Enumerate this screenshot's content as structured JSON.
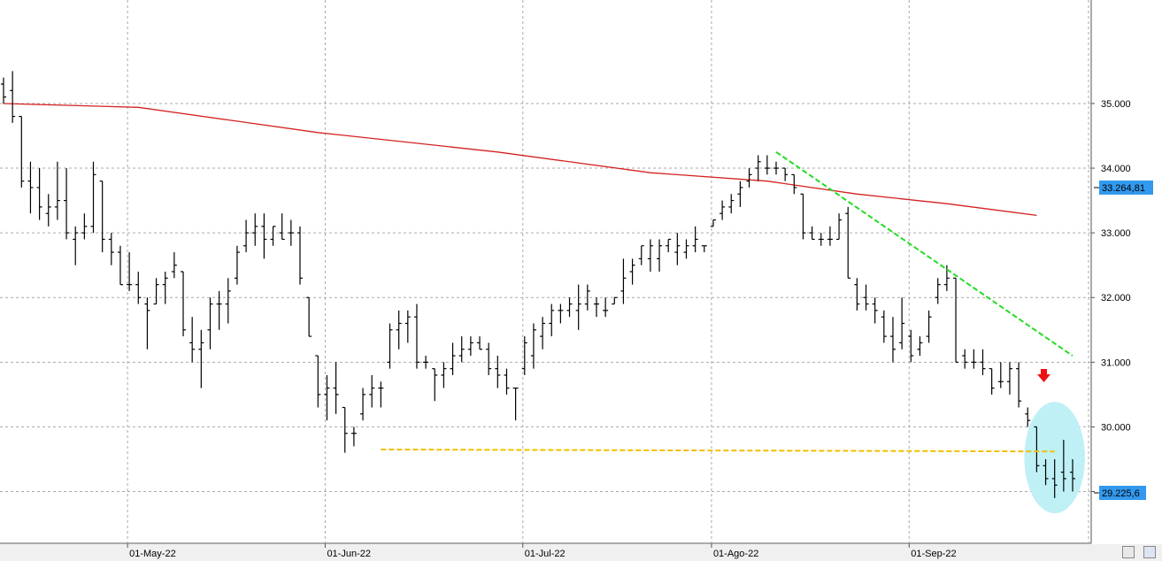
{
  "chart_data": {
    "type": "bar",
    "chart_style": "ohlc",
    "grid": true,
    "ylim": [
      28.2,
      36.6
    ],
    "y_ticks": [
      "29.000",
      "30.000",
      "31.000",
      "32.000",
      "33.000",
      "34.000",
      "35.000"
    ],
    "x_ticks": [
      "01-May-22",
      "01-Jun-22",
      "01-Jul-22",
      "01-Ago-22",
      "01-Sep-22"
    ],
    "last_price_label": "29.225,6",
    "ma_value_label": "33.264,81",
    "colors": {
      "bars": "#000000",
      "moving_average": "#d42020",
      "trendline": "#22dd22",
      "support": "#f0c000",
      "highlight": "#bff0f6",
      "arrow": "#ee1111",
      "tag": "#3399ee",
      "grid": "#aaaaaa"
    },
    "bars": [
      {
        "h": 35.4,
        "l": 35.0,
        "o": 35.3,
        "c": 35.1
      },
      {
        "h": 35.5,
        "l": 34.7,
        "o": 35.2,
        "c": 34.8
      },
      {
        "h": 34.8,
        "l": 33.7,
        "o": 34.8,
        "c": 33.8
      },
      {
        "h": 34.1,
        "l": 33.3,
        "o": 33.8,
        "c": 33.7
      },
      {
        "h": 34.0,
        "l": 33.2,
        "o": 33.7,
        "c": 33.4
      },
      {
        "h": 33.6,
        "l": 33.1,
        "o": 33.3,
        "c": 33.4
      },
      {
        "h": 34.1,
        "l": 33.2,
        "o": 33.4,
        "c": 33.5
      },
      {
        "h": 34.0,
        "l": 32.9,
        "o": 33.5,
        "c": 33.0
      },
      {
        "h": 33.1,
        "l": 32.5,
        "o": 32.9,
        "c": 33.0
      },
      {
        "h": 33.3,
        "l": 32.9,
        "o": 33.0,
        "c": 33.1
      },
      {
        "h": 34.1,
        "l": 33.0,
        "o": 33.1,
        "c": 33.9
      },
      {
        "h": 33.8,
        "l": 32.7,
        "o": 33.8,
        "c": 32.9
      },
      {
        "h": 33.0,
        "l": 32.5,
        "o": 32.9,
        "c": 32.7
      },
      {
        "h": 32.8,
        "l": 32.2,
        "o": 32.7,
        "c": 32.2
      },
      {
        "h": 32.7,
        "l": 32.1,
        "o": 32.2,
        "c": 32.2
      },
      {
        "h": 32.4,
        "l": 31.9,
        "o": 32.2,
        "c": 32.0
      },
      {
        "h": 32.0,
        "l": 31.2,
        "o": 31.9,
        "c": 31.8
      },
      {
        "h": 32.3,
        "l": 31.9,
        "o": 31.9,
        "c": 32.2
      },
      {
        "h": 32.4,
        "l": 31.9,
        "o": 32.2,
        "c": 32.3
      },
      {
        "h": 32.7,
        "l": 32.3,
        "o": 32.4,
        "c": 32.5
      },
      {
        "h": 32.4,
        "l": 31.4,
        "o": 32.4,
        "c": 31.5
      },
      {
        "h": 31.7,
        "l": 31.0,
        "o": 31.3,
        "c": 31.2
      },
      {
        "h": 31.5,
        "l": 30.6,
        "o": 31.2,
        "c": 31.3
      },
      {
        "h": 32.0,
        "l": 31.2,
        "o": 31.5,
        "c": 31.9
      },
      {
        "h": 32.1,
        "l": 31.5,
        "o": 31.9,
        "c": 31.9
      },
      {
        "h": 32.3,
        "l": 31.6,
        "o": 31.9,
        "c": 32.1
      },
      {
        "h": 32.8,
        "l": 32.2,
        "o": 32.3,
        "c": 32.7
      },
      {
        "h": 33.2,
        "l": 32.7,
        "o": 32.8,
        "c": 33.0
      },
      {
        "h": 33.3,
        "l": 32.8,
        "o": 33.0,
        "c": 33.1
      },
      {
        "h": 33.3,
        "l": 32.6,
        "o": 33.1,
        "c": 32.9
      },
      {
        "h": 33.1,
        "l": 32.8,
        "o": 32.9,
        "c": 33.1
      },
      {
        "h": 33.3,
        "l": 32.9,
        "o": 33.0,
        "c": 32.9
      },
      {
        "h": 33.2,
        "l": 32.8,
        "o": 33.0,
        "c": 33.0
      },
      {
        "h": 33.1,
        "l": 32.2,
        "o": 33.0,
        "c": 32.3
      },
      {
        "h": 32.0,
        "l": 31.4,
        "o": 32.0,
        "c": 31.4
      },
      {
        "h": 31.1,
        "l": 30.3,
        "o": 31.1,
        "c": 30.5
      },
      {
        "h": 30.8,
        "l": 30.1,
        "o": 30.5,
        "c": 30.6
      },
      {
        "h": 31.0,
        "l": 30.2,
        "o": 30.6,
        "c": 30.5
      },
      {
        "h": 30.3,
        "l": 29.6,
        "o": 30.3,
        "c": 29.9
      },
      {
        "h": 30.0,
        "l": 29.7,
        "o": 29.9,
        "c": 29.9
      },
      {
        "h": 30.6,
        "l": 30.1,
        "o": 30.2,
        "c": 30.5
      },
      {
        "h": 30.8,
        "l": 30.3,
        "o": 30.5,
        "c": 30.6
      },
      {
        "h": 30.7,
        "l": 30.3,
        "o": 30.6,
        "c": 30.6
      },
      {
        "h": 31.6,
        "l": 30.9,
        "o": 31.0,
        "c": 31.5
      },
      {
        "h": 31.8,
        "l": 31.2,
        "o": 31.5,
        "c": 31.6
      },
      {
        "h": 31.8,
        "l": 31.3,
        "o": 31.6,
        "c": 31.7
      },
      {
        "h": 31.9,
        "l": 30.9,
        "o": 31.7,
        "c": 31.0
      },
      {
        "h": 31.1,
        "l": 30.9,
        "o": 31.0,
        "c": 31.0
      },
      {
        "h": 30.9,
        "l": 30.4,
        "o": 30.9,
        "c": 30.8
      },
      {
        "h": 31.0,
        "l": 30.6,
        "o": 30.8,
        "c": 30.9
      },
      {
        "h": 31.3,
        "l": 30.8,
        "o": 30.9,
        "c": 31.1
      },
      {
        "h": 31.4,
        "l": 31.0,
        "o": 31.1,
        "c": 31.2
      },
      {
        "h": 31.4,
        "l": 31.1,
        "o": 31.2,
        "c": 31.3
      },
      {
        "h": 31.4,
        "l": 31.2,
        "o": 31.3,
        "c": 31.2
      },
      {
        "h": 31.3,
        "l": 30.8,
        "o": 31.2,
        "c": 30.9
      },
      {
        "h": 31.1,
        "l": 30.6,
        "o": 30.9,
        "c": 30.8
      },
      {
        "h": 30.9,
        "l": 30.5,
        "o": 30.8,
        "c": 30.6
      },
      {
        "h": 30.6,
        "l": 30.1,
        "o": 30.6,
        "c": 30.6
      },
      {
        "h": 31.4,
        "l": 30.8,
        "o": 30.9,
        "c": 31.3
      },
      {
        "h": 31.6,
        "l": 30.9,
        "o": 31.1,
        "c": 31.5
      },
      {
        "h": 31.7,
        "l": 31.2,
        "o": 31.4,
        "c": 31.6
      },
      {
        "h": 31.9,
        "l": 31.4,
        "o": 31.6,
        "c": 31.8
      },
      {
        "h": 31.9,
        "l": 31.6,
        "o": 31.8,
        "c": 31.8
      },
      {
        "h": 32.0,
        "l": 31.7,
        "o": 31.8,
        "c": 31.9
      },
      {
        "h": 32.2,
        "l": 31.5,
        "o": 31.8,
        "c": 31.9
      },
      {
        "h": 32.2,
        "l": 31.8,
        "o": 31.9,
        "c": 32.1
      },
      {
        "h": 32.0,
        "l": 31.7,
        "o": 31.9,
        "c": 31.9
      },
      {
        "h": 32.0,
        "l": 31.7,
        "o": 31.8,
        "c": 31.8
      },
      {
        "h": 32.0,
        "l": 31.9,
        "o": 31.9,
        "c": 32.0
      },
      {
        "h": 32.6,
        "l": 31.9,
        "o": 32.1,
        "c": 32.3
      },
      {
        "h": 32.6,
        "l": 32.2,
        "o": 32.4,
        "c": 32.5
      },
      {
        "h": 32.8,
        "l": 32.5,
        "o": 32.6,
        "c": 32.8
      },
      {
        "h": 32.9,
        "l": 32.4,
        "o": 32.6,
        "c": 32.8
      },
      {
        "h": 32.9,
        "l": 32.4,
        "o": 32.6,
        "c": 32.8
      },
      {
        "h": 32.9,
        "l": 32.7,
        "o": 32.8,
        "c": 32.9
      },
      {
        "h": 33.0,
        "l": 32.5,
        "o": 32.7,
        "c": 32.8
      },
      {
        "h": 32.9,
        "l": 32.6,
        "o": 32.7,
        "c": 32.8
      },
      {
        "h": 33.1,
        "l": 32.7,
        "o": 32.8,
        "c": 32.9
      },
      {
        "h": 32.8,
        "l": 32.7,
        "o": 32.8,
        "c": 32.8
      },
      {
        "h": 33.2,
        "l": 33.1,
        "o": 33.1,
        "c": 33.2
      },
      {
        "h": 33.5,
        "l": 33.2,
        "o": 33.3,
        "c": 33.4
      },
      {
        "h": 33.6,
        "l": 33.3,
        "o": 33.4,
        "c": 33.5
      },
      {
        "h": 33.8,
        "l": 33.4,
        "o": 33.6,
        "c": 33.7
      },
      {
        "h": 34.0,
        "l": 33.7,
        "o": 33.8,
        "c": 33.9
      },
      {
        "h": 34.2,
        "l": 33.8,
        "o": 34.0,
        "c": 34.1
      },
      {
        "h": 34.2,
        "l": 33.9,
        "o": 34.0,
        "c": 34.0
      },
      {
        "h": 34.1,
        "l": 33.9,
        "o": 34.0,
        "c": 34.0
      },
      {
        "h": 34.0,
        "l": 33.8,
        "o": 34.0,
        "c": 33.9
      },
      {
        "h": 33.9,
        "l": 33.6,
        "o": 33.9,
        "c": 33.7
      },
      {
        "h": 33.6,
        "l": 32.9,
        "o": 33.6,
        "c": 33.0
      },
      {
        "h": 33.1,
        "l": 32.9,
        "o": 33.0,
        "c": 32.9
      },
      {
        "h": 33.0,
        "l": 32.8,
        "o": 32.9,
        "c": 32.9
      },
      {
        "h": 33.1,
        "l": 32.8,
        "o": 32.9,
        "c": 32.9
      },
      {
        "h": 33.3,
        "l": 32.9,
        "o": 32.9,
        "c": 33.2
      },
      {
        "h": 33.4,
        "l": 32.3,
        "o": 33.3,
        "c": 32.3
      },
      {
        "h": 32.3,
        "l": 31.8,
        "o": 32.2,
        "c": 31.9
      },
      {
        "h": 32.2,
        "l": 31.8,
        "o": 32.0,
        "c": 31.9
      },
      {
        "h": 32.0,
        "l": 31.6,
        "o": 31.9,
        "c": 31.8
      },
      {
        "h": 31.8,
        "l": 31.3,
        "o": 31.7,
        "c": 31.4
      },
      {
        "h": 31.7,
        "l": 31.0,
        "o": 31.4,
        "c": 31.2
      },
      {
        "h": 32.0,
        "l": 31.2,
        "o": 31.3,
        "c": 31.6
      },
      {
        "h": 31.5,
        "l": 31.0,
        "o": 31.4,
        "c": 31.1
      },
      {
        "h": 31.4,
        "l": 31.1,
        "o": 31.2,
        "c": 31.3
      },
      {
        "h": 31.8,
        "l": 31.3,
        "o": 31.4,
        "c": 31.7
      },
      {
        "h": 32.3,
        "l": 31.9,
        "o": 32.0,
        "c": 32.2
      },
      {
        "h": 32.5,
        "l": 32.1,
        "o": 32.2,
        "c": 32.3
      },
      {
        "h": 32.3,
        "l": 31.0,
        "o": 32.3,
        "c": 31.0
      },
      {
        "h": 31.2,
        "l": 30.9,
        "o": 31.1,
        "c": 31.0
      },
      {
        "h": 31.2,
        "l": 30.9,
        "o": 31.0,
        "c": 31.0
      },
      {
        "h": 31.2,
        "l": 30.8,
        "o": 31.0,
        "c": 30.9
      },
      {
        "h": 30.9,
        "l": 30.5,
        "o": 30.9,
        "c": 30.6
      },
      {
        "h": 31.0,
        "l": 30.6,
        "o": 30.7,
        "c": 30.7
      },
      {
        "h": 31.0,
        "l": 30.5,
        "o": 30.7,
        "c": 30.9
      },
      {
        "h": 31.0,
        "l": 30.3,
        "o": 30.9,
        "c": 30.4
      },
      {
        "h": 30.3,
        "l": 30.0,
        "o": 30.2,
        "c": 30.1
      },
      {
        "h": 30.0,
        "l": 29.3,
        "o": 30.0,
        "c": 29.4
      },
      {
        "h": 29.5,
        "l": 29.1,
        "o": 29.4,
        "c": 29.2
      },
      {
        "h": 29.5,
        "l": 28.9,
        "o": 29.2,
        "c": 29.1
      },
      {
        "h": 29.8,
        "l": 29.0,
        "o": 29.3,
        "c": 29.2
      },
      {
        "h": 29.5,
        "l": 29.0,
        "o": 29.3,
        "c": 29.2
      }
    ],
    "moving_average_samples": [
      {
        "x": 0,
        "y": 35.0
      },
      {
        "x": 15,
        "y": 34.94
      },
      {
        "x": 35,
        "y": 34.55
      },
      {
        "x": 55,
        "y": 34.25
      },
      {
        "x": 72,
        "y": 33.93
      },
      {
        "x": 85,
        "y": 33.8
      },
      {
        "x": 95,
        "y": 33.6
      },
      {
        "x": 105,
        "y": 33.45
      },
      {
        "x": 115,
        "y": 33.27
      }
    ],
    "trendline": [
      {
        "x": 86,
        "y": 34.25
      },
      {
        "x": 118,
        "y": 31.1
      }
    ],
    "support_line": [
      {
        "x": 42,
        "y": 29.65
      },
      {
        "x": 117,
        "y": 29.62
      }
    ]
  }
}
